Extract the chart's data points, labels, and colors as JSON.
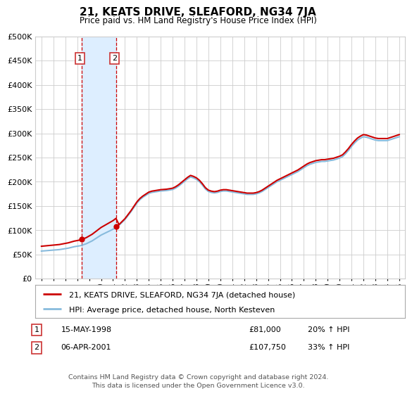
{
  "title": "21, KEATS DRIVE, SLEAFORD, NG34 7JA",
  "subtitle": "Price paid vs. HM Land Registry's House Price Index (HPI)",
  "transactions": [
    {
      "id": 1,
      "date": "15-MAY-1998",
      "price": 81000,
      "hpi_pct": "20% ↑ HPI",
      "year": 1998.37
    },
    {
      "id": 2,
      "date": "06-APR-2001",
      "price": 107750,
      "hpi_pct": "33% ↑ HPI",
      "year": 2001.26
    }
  ],
  "legend_line1": "21, KEATS DRIVE, SLEAFORD, NG34 7JA (detached house)",
  "legend_line2": "HPI: Average price, detached house, North Kesteven",
  "footer": "Contains HM Land Registry data © Crown copyright and database right 2024.\nThis data is licensed under the Open Government Licence v3.0.",
  "red_color": "#cc0000",
  "blue_color": "#88bbdd",
  "shade_color": "#ddeeff",
  "background_color": "#ffffff",
  "grid_color": "#cccccc",
  "ylim": [
    0,
    500000
  ],
  "yticks": [
    0,
    50000,
    100000,
    150000,
    200000,
    250000,
    300000,
    350000,
    400000,
    450000,
    500000
  ],
  "xlim_start": 1994.5,
  "xlim_end": 2025.5,
  "xticks": [
    1995,
    1996,
    1997,
    1998,
    1999,
    2000,
    2001,
    2002,
    2003,
    2004,
    2005,
    2006,
    2007,
    2008,
    2009,
    2010,
    2011,
    2012,
    2013,
    2014,
    2015,
    2016,
    2017,
    2018,
    2019,
    2020,
    2021,
    2022,
    2023,
    2024,
    2025
  ]
}
